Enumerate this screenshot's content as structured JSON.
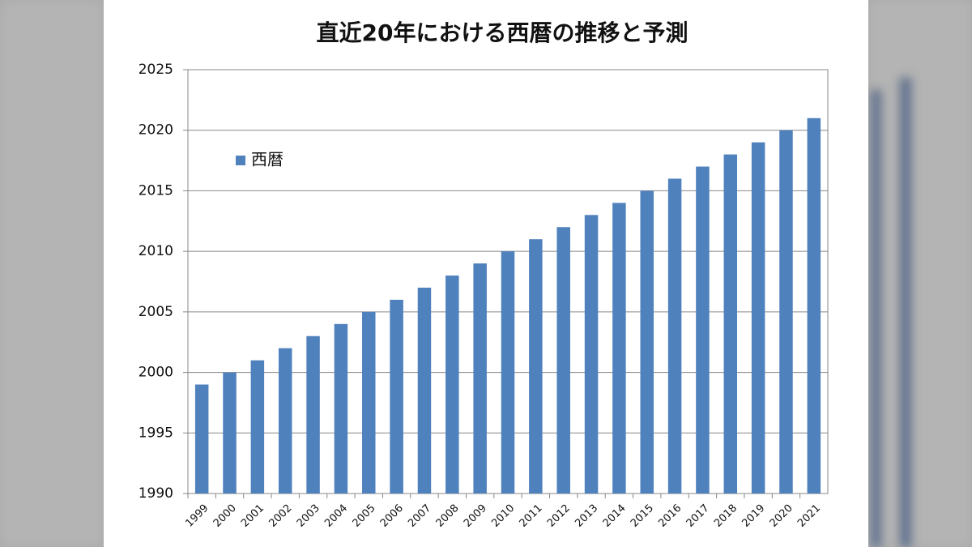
{
  "chart_data": {
    "type": "bar",
    "title": "直近20年における西暦の推移と予測",
    "categories": [
      "1999",
      "2000",
      "2001",
      "2002",
      "2003",
      "2004",
      "2005",
      "2006",
      "2007",
      "2008",
      "2009",
      "2010",
      "2011",
      "2012",
      "2013",
      "2014",
      "2015",
      "2016",
      "2017",
      "2018",
      "2019",
      "2020",
      "2021"
    ],
    "series": [
      {
        "name": "西暦",
        "color": "#4f81bd",
        "values": [
          1999,
          2000,
          2001,
          2002,
          2003,
          2004,
          2005,
          2006,
          2007,
          2008,
          2009,
          2010,
          2011,
          2012,
          2013,
          2014,
          2015,
          2016,
          2017,
          2018,
          2019,
          2020,
          2021
        ]
      }
    ],
    "ylim": [
      1990,
      2025
    ],
    "yticks": [
      1990,
      1995,
      2000,
      2005,
      2010,
      2015,
      2020,
      2025
    ],
    "grid": true,
    "legend": "upper left"
  }
}
